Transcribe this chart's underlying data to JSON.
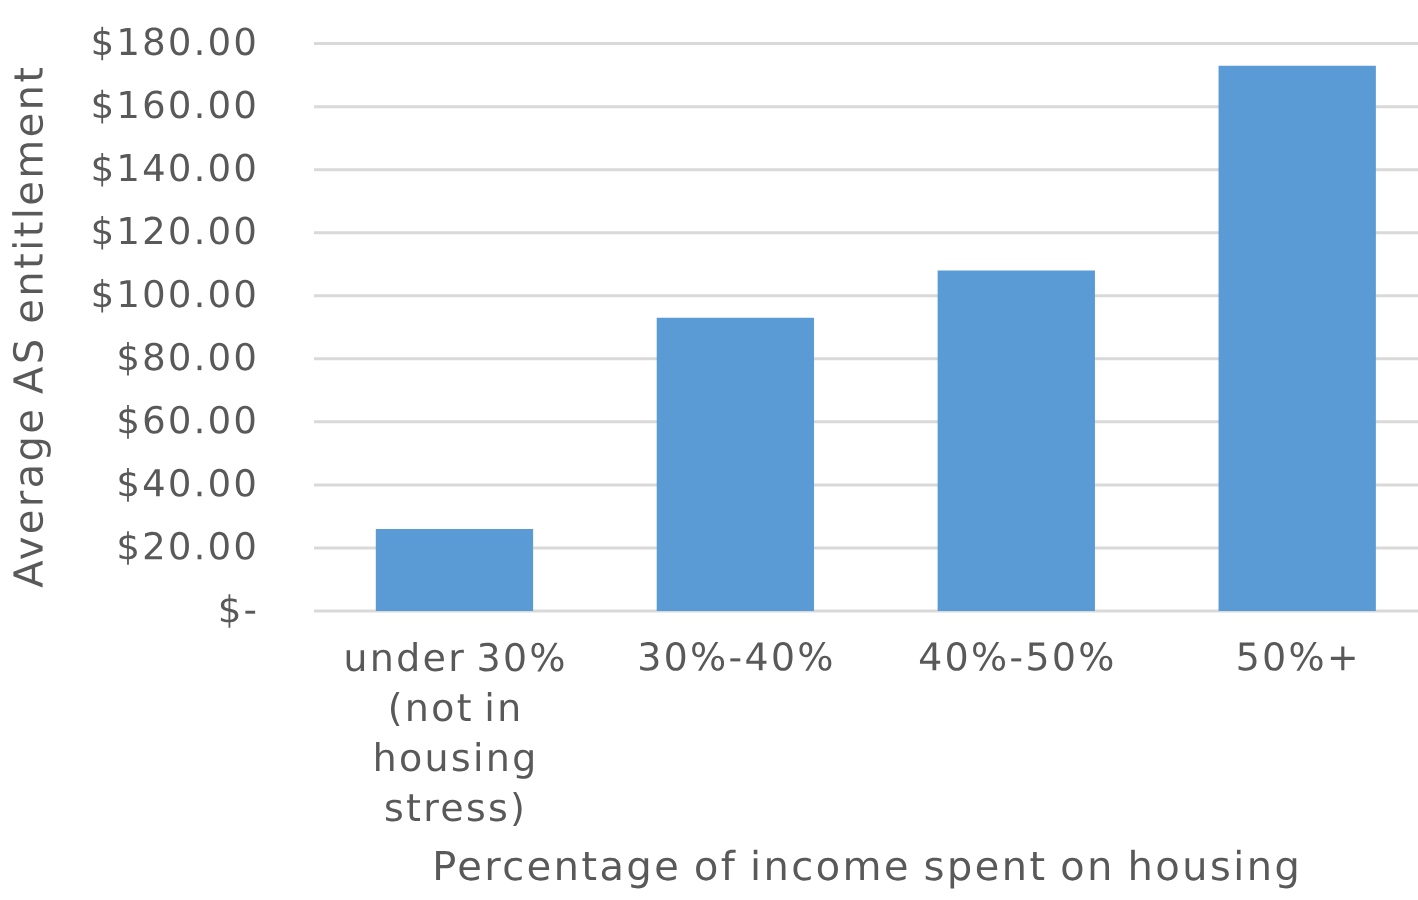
{
  "chart_data": {
    "type": "bar",
    "xlabel": "Percentage of income spent on housing",
    "ylabel": "Average AS entitlement",
    "categories": [
      "under 30% (not in housing stress)",
      "30%-40%",
      "40%-50%",
      "50%+"
    ],
    "values": [
      26,
      93,
      108,
      173
    ],
    "color": "#5b9bd5",
    "ylim": [
      0,
      180
    ],
    "yticks": [
      {
        "value": 0,
        "label": "$-"
      },
      {
        "value": 20,
        "label": "$20.00"
      },
      {
        "value": 40,
        "label": "$40.00"
      },
      {
        "value": 60,
        "label": "$60.00"
      },
      {
        "value": 80,
        "label": "$80.00"
      },
      {
        "value": 100,
        "label": "$100.00"
      },
      {
        "value": 120,
        "label": "$120.00"
      },
      {
        "value": 140,
        "label": "$140.00"
      },
      {
        "value": 160,
        "label": "$160.00"
      },
      {
        "value": 180,
        "label": "$180.00"
      }
    ],
    "grid": "y"
  }
}
